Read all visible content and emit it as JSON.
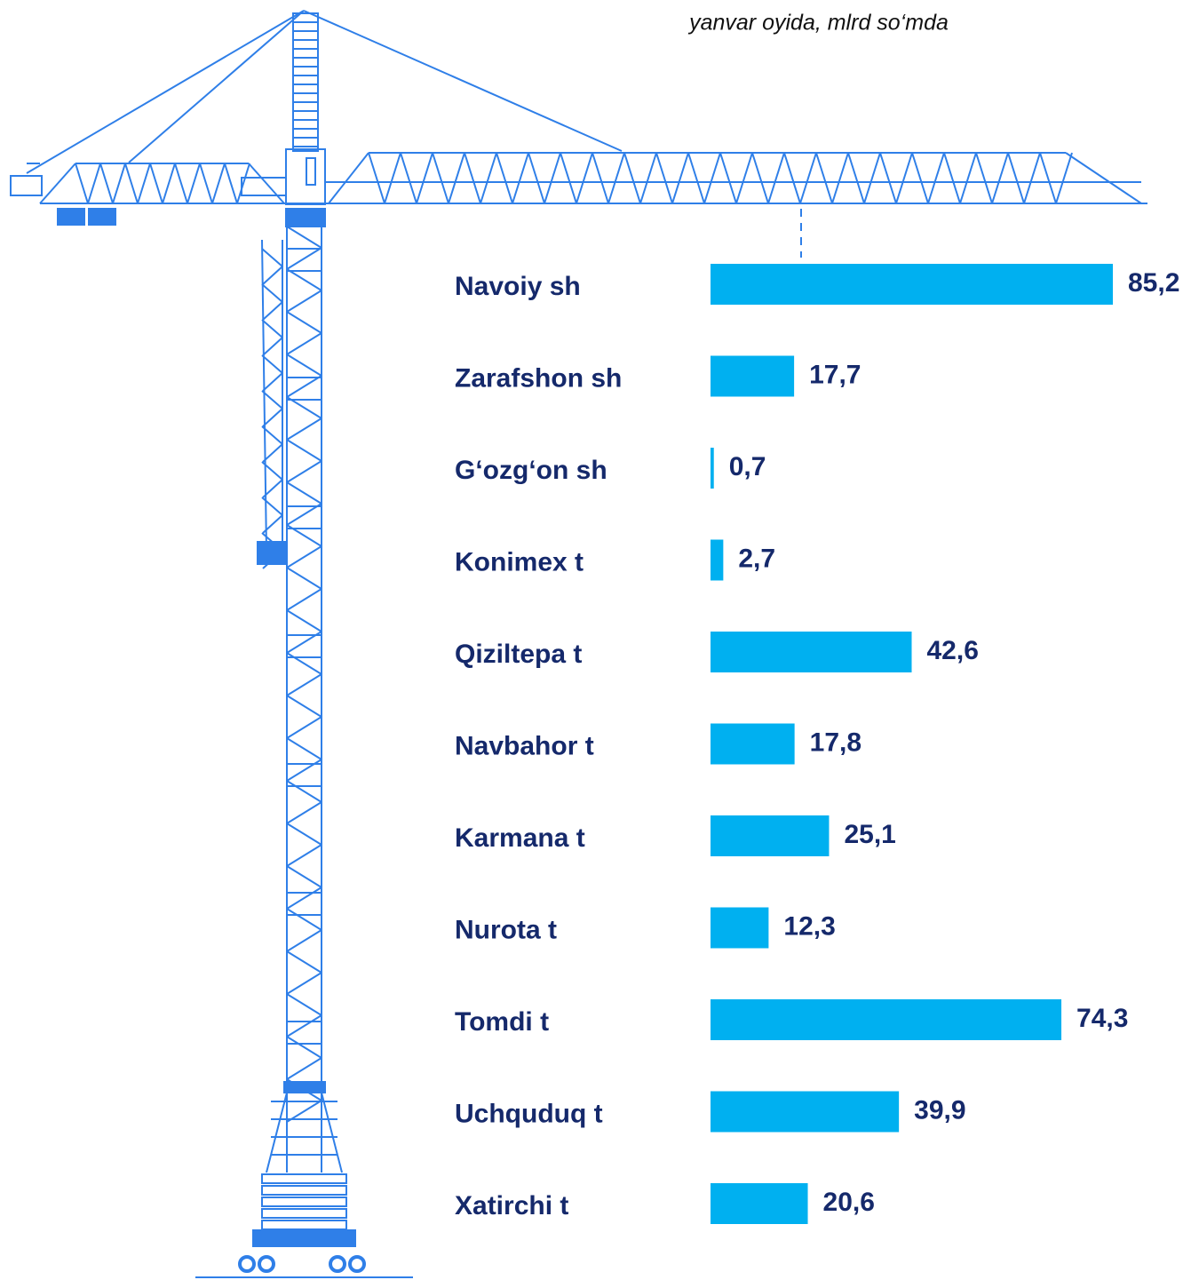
{
  "chart_data": {
    "type": "bar",
    "orientation": "horizontal",
    "subtitle": "yanvar oyida, mlrd so‘mda",
    "categories": [
      "Navoiy sh",
      "Zarafshon sh",
      "G‘ozg‘on sh",
      "Konimex t",
      "Qiziltepa t",
      "Navbahor t",
      "Karmana t",
      "Nurota t",
      "Tomdi t",
      "Uchquduq t",
      "Xatirchi t"
    ],
    "values": [
      85.2,
      17.7,
      0.7,
      2.7,
      42.6,
      17.8,
      25.1,
      12.3,
      74.3,
      39.9,
      20.6
    ],
    "value_labels": [
      "85,2",
      "17,7",
      "0,7",
      "2,7",
      "42,6",
      "17,8",
      "25,1",
      "12,3",
      "74,3",
      "39,9",
      "20,6"
    ],
    "color": "#00b0f0"
  }
}
